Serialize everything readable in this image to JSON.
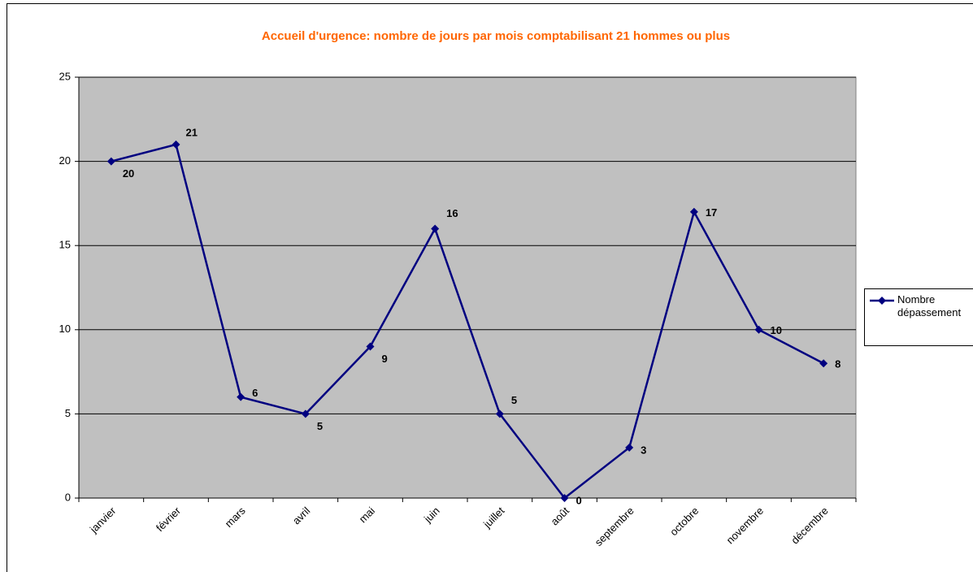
{
  "chart_data": {
    "type": "line",
    "title": "Accueil d'urgence: nombre de jours par mois comptabilisant 21 hommes ou plus",
    "categories": [
      "janvier",
      "février",
      "mars",
      "avril",
      "mai",
      "juin",
      "juillet",
      "août",
      "septembre",
      "octobre",
      "novembre",
      "décembre"
    ],
    "series": [
      {
        "name": "Nombre dépassement",
        "color": "#000080",
        "values": [
          20,
          21,
          6,
          5,
          9,
          16,
          5,
          0,
          3,
          17,
          10,
          8
        ]
      }
    ],
    "ylim": [
      0,
      25
    ],
    "yticks": [
      0,
      5,
      10,
      15,
      20,
      25
    ],
    "grid": true,
    "legend": "right"
  }
}
